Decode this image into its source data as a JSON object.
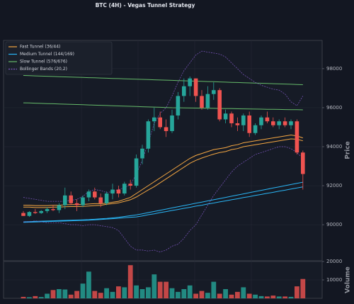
{
  "chart_data": [
    {
      "type": "candlestick",
      "title": "BTC (4H) - Vegas Tunnel Strategy",
      "ylabel": "Price",
      "up_color": "#26a69a",
      "down_color": "#ef5350",
      "legend": "upper left",
      "grid": true,
      "ylim": [
        88150,
        99450
      ],
      "yticks": [
        90000,
        92000,
        94000,
        96000,
        98000
      ],
      "open": [
        90600,
        90450,
        90650,
        90600,
        90700,
        90800,
        90750,
        91000,
        91500,
        91100,
        91000,
        91400,
        91700,
        91400,
        91100,
        91600,
        91800,
        91600,
        92100,
        92000,
        93400,
        93900,
        95300,
        95500,
        95000,
        94800,
        95600,
        96600,
        97100,
        97500,
        96600,
        96000,
        96700,
        96900,
        95400,
        95700,
        95200,
        95100,
        95600,
        94700,
        95100,
        95500,
        95300,
        95100,
        95300,
        95100,
        95300,
        93700
      ],
      "high": [
        90700,
        90700,
        90800,
        90750,
        90900,
        91000,
        91100,
        91900,
        91700,
        91300,
        91500,
        91800,
        91900,
        91600,
        91700,
        92100,
        92000,
        92200,
        92300,
        93600,
        94100,
        95400,
        96000,
        95800,
        95400,
        95900,
        96800,
        97500,
        97600,
        97500,
        96900,
        97100,
        97300,
        97000,
        95900,
        95800,
        95500,
        95700,
        95800,
        95200,
        95600,
        95800,
        95500,
        95400,
        95500,
        95400,
        95400,
        93800
      ],
      "low": [
        90450,
        90400,
        90550,
        90550,
        90600,
        90700,
        90600,
        90800,
        91000,
        90700,
        90900,
        91200,
        91300,
        90900,
        91000,
        91300,
        91400,
        91500,
        91800,
        91900,
        93100,
        93700,
        94800,
        94900,
        94500,
        94700,
        95400,
        96300,
        96600,
        96300,
        95900,
        95900,
        96400,
        95300,
        95200,
        95000,
        94800,
        94800,
        94500,
        94600,
        94900,
        95200,
        95000,
        94900,
        95000,
        94900,
        93600,
        91800
      ],
      "close": [
        90450,
        90650,
        90600,
        90700,
        90800,
        90750,
        91000,
        91500,
        91100,
        91000,
        91400,
        91700,
        91400,
        91100,
        91600,
        91800,
        91600,
        92100,
        92000,
        93400,
        93900,
        95300,
        95500,
        95000,
        94800,
        95600,
        96600,
        97100,
        97500,
        96600,
        96000,
        96700,
        96900,
        95400,
        95700,
        95200,
        95100,
        95600,
        94700,
        95100,
        95500,
        95300,
        95100,
        95300,
        95100,
        95300,
        93700,
        92600
      ],
      "series": [
        {
          "name": "Fast Tunnel (36/44)",
          "color": "#f5a742",
          "style": "solid",
          "upper": [
            91000,
            91000,
            90980,
            90980,
            90980,
            91000,
            91000,
            91020,
            91030,
            91030,
            91040,
            91060,
            91080,
            91080,
            91100,
            91150,
            91200,
            91300,
            91400,
            91600,
            91800,
            92000,
            92200,
            92400,
            92600,
            92800,
            93000,
            93200,
            93400,
            93550,
            93650,
            93750,
            93850,
            93900,
            93950,
            94050,
            94100,
            94200,
            94250,
            94300,
            94350,
            94400,
            94450,
            94500,
            94550,
            94600,
            94550,
            94450
          ],
          "lower": [
            90900,
            90900,
            90880,
            90880,
            90880,
            90900,
            90900,
            90920,
            90930,
            90930,
            90940,
            90960,
            90980,
            90990,
            91050,
            91080,
            91120,
            91200,
            91280,
            91420,
            91600,
            91780,
            91950,
            92150,
            92350,
            92550,
            92750,
            92950,
            93150,
            93300,
            93420,
            93520,
            93620,
            93700,
            93750,
            93850,
            93900,
            94000,
            94050,
            94100,
            94150,
            94200,
            94250,
            94300,
            94350,
            94400,
            94380,
            94300
          ]
        },
        {
          "name": "Medium Tunnel (144/169)",
          "color": "#29b6f6",
          "style": "solid",
          "upper": [
            90150,
            90160,
            90170,
            90180,
            90190,
            90200,
            90210,
            90220,
            90230,
            90240,
            90250,
            90260,
            90280,
            90300,
            90320,
            90350,
            90380,
            90420,
            90460,
            90500,
            90560,
            90620,
            90680,
            90740,
            90800,
            90860,
            90920,
            90980,
            91040,
            91100,
            91160,
            91220,
            91280,
            91340,
            91400,
            91460,
            91520,
            91580,
            91640,
            91700,
            91760,
            91820,
            91880,
            91940,
            92000,
            92060,
            92120,
            92180
          ],
          "lower": [
            90120,
            90130,
            90140,
            90150,
            90160,
            90170,
            90180,
            90190,
            90200,
            90210,
            90220,
            90230,
            90250,
            90270,
            90290,
            90310,
            90330,
            90360,
            90380,
            90400,
            90450,
            90510,
            90560,
            90620,
            90670,
            90730,
            90780,
            90840,
            90890,
            90950,
            91000,
            91060,
            91110,
            91170,
            91220,
            91280,
            91330,
            91390,
            91440,
            91500,
            91550,
            91610,
            91660,
            91720,
            91770,
            91830,
            91880,
            91940
          ]
        },
        {
          "name": "Slow Tunnel (576/676)",
          "color": "#66bb6a",
          "style": "solid",
          "upper": [
            97650,
            97640,
            97630,
            97620,
            97610,
            97600,
            97590,
            97580,
            97570,
            97560,
            97550,
            97540,
            97530,
            97520,
            97510,
            97500,
            97490,
            97480,
            97470,
            97460,
            97450,
            97440,
            97430,
            97420,
            97410,
            97400,
            97390,
            97380,
            97370,
            97360,
            97350,
            97340,
            97330,
            97320,
            97310,
            97300,
            97290,
            97280,
            97270,
            97260,
            97250,
            97240,
            97230,
            97220,
            97210,
            97200,
            97190,
            97180
          ],
          "lower": [
            96250,
            96240,
            96230,
            96220,
            96210,
            96200,
            96190,
            96180,
            96170,
            96160,
            96150,
            96140,
            96130,
            96120,
            96110,
            96100,
            96090,
            96080,
            96070,
            96060,
            96050,
            96040,
            96030,
            96020,
            96010,
            96000,
            95995,
            95990,
            95985,
            95980,
            95975,
            95970,
            95965,
            95960,
            95955,
            95950,
            95945,
            95940,
            95935,
            95930,
            95925,
            95920,
            95915,
            95910,
            95905,
            95900,
            95895,
            95890
          ]
        },
        {
          "name": "Bollinger Bands (20,2)",
          "color": "#7e57c2",
          "style": "dashed",
          "upper": [
            91400,
            91350,
            91300,
            91250,
            91200,
            91200,
            91200,
            91200,
            91250,
            91300,
            91450,
            91700,
            91800,
            91750,
            91650,
            91700,
            91800,
            91900,
            92050,
            92600,
            93300,
            94200,
            95200,
            95700,
            96000,
            96600,
            97300,
            97900,
            98300,
            98700,
            98900,
            98850,
            98800,
            98750,
            98600,
            98300,
            98000,
            97700,
            97500,
            97300,
            97150,
            97050,
            96950,
            96900,
            96700,
            96300,
            96100,
            96600
          ],
          "lower": [
            90150,
            90150,
            90200,
            90150,
            90100,
            90100,
            90100,
            90050,
            90000,
            90000,
            89950,
            90000,
            90000,
            89950,
            89900,
            89850,
            89700,
            89300,
            88900,
            88700,
            88700,
            88650,
            88700,
            88600,
            88700,
            88900,
            89000,
            89300,
            89700,
            90000,
            90500,
            91000,
            91500,
            91900,
            92300,
            92700,
            93000,
            93200,
            93400,
            93600,
            93700,
            93800,
            93900,
            94000,
            94000,
            93900,
            93700,
            93400
          ]
        }
      ]
    },
    {
      "type": "bar",
      "ylabel": "Volume",
      "ylim": [
        0,
        20000
      ],
      "yticks": [
        10000,
        20000
      ],
      "values": [
        800,
        600,
        1200,
        700,
        2500,
        4500,
        5000,
        4800,
        2000,
        4000,
        8000,
        14500,
        4000,
        3000,
        5500,
        3500,
        6500,
        6000,
        18000,
        7000,
        5000,
        6000,
        13000,
        9000,
        9000,
        5500,
        3500,
        5000,
        7000,
        2500,
        4000,
        3000,
        9000,
        2500,
        5000,
        2000,
        3500,
        6000,
        2500,
        2000,
        1200,
        1000,
        1500,
        1000,
        1000,
        800,
        6500,
        10500
      ]
    }
  ]
}
